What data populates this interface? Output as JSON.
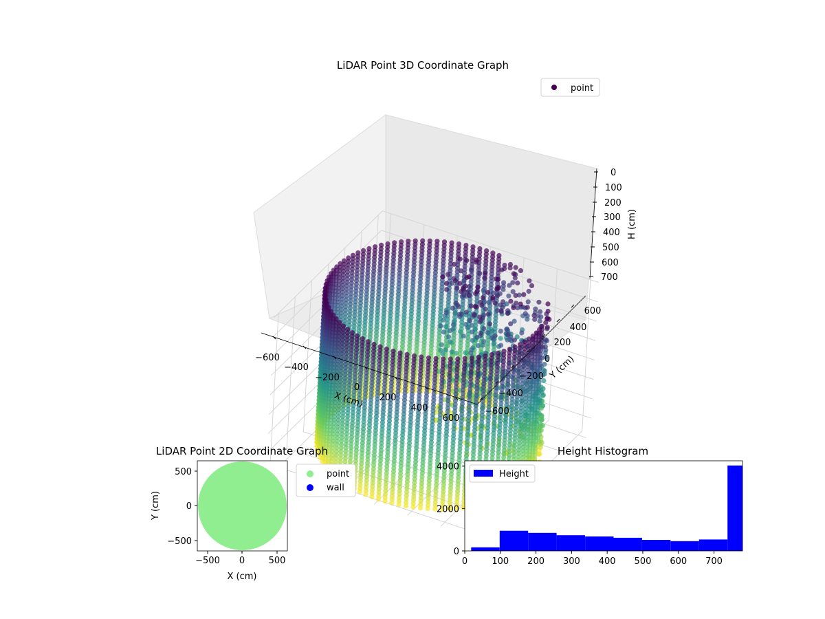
{
  "figure": {
    "background": "#ffffff"
  },
  "chart_data": [
    {
      "id": "scatter3d",
      "type": "scatter",
      "projection": "3d",
      "title": "LiDAR Point 3D Coordinate Graph",
      "xlabel": "X (cm)",
      "ylabel": "Y (cm)",
      "zlabel": "H (cm)",
      "xlim": [
        -650,
        650
      ],
      "ylim": [
        -650,
        650
      ],
      "zlim": [
        0,
        780
      ],
      "z_inverted": true,
      "xticks": [
        "−600",
        "−400",
        "−200",
        "0",
        "200",
        "400",
        "600"
      ],
      "yticks": [
        "−600",
        "−400",
        "−200",
        "0",
        "200",
        "400",
        "600"
      ],
      "zticks": [
        "0",
        "100",
        "200",
        "300",
        "400",
        "500",
        "600",
        "700"
      ],
      "grid": true,
      "colormap": "viridis",
      "legend": {
        "position": "top-right",
        "entries": [
          {
            "label": "point",
            "color": "#440154"
          }
        ]
      },
      "series": [
        {
          "name": "point",
          "shape": "cylindrical wall with opening on the +x/+y side",
          "radius": 600,
          "h_range": [
            0,
            780
          ],
          "wall_opening_azimuth_deg": [
            10,
            80
          ],
          "columns": 96
        }
      ]
    },
    {
      "id": "scatter2d",
      "type": "scatter",
      "title": "LiDAR Point 2D Coordinate Graph",
      "xlabel": "X (cm)",
      "ylabel": "Y (cm)",
      "xlim": [
        -650,
        650
      ],
      "ylim": [
        -650,
        650
      ],
      "xticks": [
        "−500",
        "0",
        "500"
      ],
      "yticks": [
        "−500",
        "0",
        "500"
      ],
      "legend": {
        "position": "outside-right",
        "entries": [
          {
            "label": "point",
            "color": "#90ee90"
          },
          {
            "label": "wall",
            "color": "#0000ff"
          }
        ]
      },
      "series": [
        {
          "name": "point",
          "color": "#90ee90",
          "shape": "filled disk",
          "radius": 640
        },
        {
          "name": "wall",
          "color": "#0000ff",
          "points": []
        }
      ]
    },
    {
      "id": "histogram",
      "type": "bar",
      "title": "Height Histogram",
      "xlabel": "",
      "ylabel": "",
      "xlim": [
        0,
        780
      ],
      "ylim": [
        0,
        4250
      ],
      "xticks": [
        "0",
        "100",
        "200",
        "300",
        "400",
        "500",
        "600",
        "700"
      ],
      "yticks": [
        "0",
        "2000",
        "4000"
      ],
      "color": "#0000ff",
      "legend": {
        "position": "top-left",
        "entries": [
          {
            "label": "Height",
            "color": "#0000ff"
          }
        ]
      },
      "bin_edges": [
        18,
        98,
        178,
        258,
        338,
        418,
        498,
        578,
        658,
        738,
        780
      ],
      "values": [
        170,
        950,
        850,
        740,
        680,
        620,
        520,
        460,
        540,
        4030
      ]
    }
  ]
}
